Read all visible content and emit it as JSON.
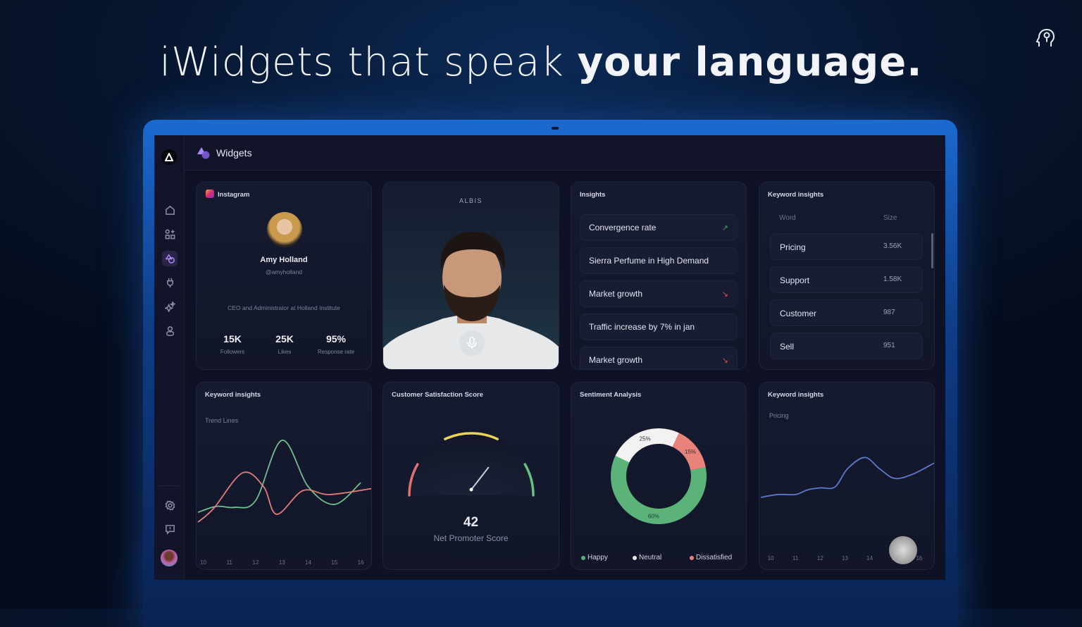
{
  "headline": {
    "regular": "iWidgets that speak ",
    "bold": "your language."
  },
  "brand_icon": "head-keyhole-icon",
  "app": {
    "title": "Widgets",
    "logo": "A"
  },
  "sidebar": {
    "items": [
      {
        "icon": "home-icon"
      },
      {
        "icon": "apps-icon"
      },
      {
        "icon": "widgets-icon",
        "active": true
      },
      {
        "icon": "plug-icon"
      },
      {
        "icon": "sparkles-icon"
      },
      {
        "icon": "user-icon"
      }
    ],
    "bottom": [
      {
        "icon": "gear-icon"
      },
      {
        "icon": "feedback-icon"
      },
      {
        "icon": "avatar"
      }
    ]
  },
  "instagram": {
    "label": "Instagram",
    "name": "Amy Holland",
    "handle": "@amyholland",
    "bio": "CEO and Administrator at Holland Institute",
    "stats": [
      {
        "value": "15K",
        "label": "Followers"
      },
      {
        "value": "25K",
        "label": "Likes"
      },
      {
        "value": "95%",
        "label": "Response rate"
      }
    ]
  },
  "avatar_card": {
    "label": "ALBIS",
    "icon": "microphone-icon"
  },
  "insights": {
    "title": "Insights",
    "items": [
      {
        "text": "Convergence rate",
        "trend": "up"
      },
      {
        "text": "Sierra Perfume in High Demand",
        "trend": ""
      },
      {
        "text": "Market growth",
        "trend": "down"
      },
      {
        "text": "Traffic increase by 7% in jan",
        "trend": ""
      },
      {
        "text": "Market growth",
        "trend": "down"
      }
    ],
    "colors": {
      "up": "#3f9a6a",
      "down": "#d9534f"
    }
  },
  "keyword_table": {
    "title": "Keyword insights",
    "headers": [
      "Word",
      "Size"
    ],
    "rows": [
      [
        "Pricing",
        "3.56K"
      ],
      [
        "Support",
        "1.58K"
      ],
      [
        "Customer",
        "987"
      ],
      [
        "Sell",
        "951"
      ]
    ]
  },
  "chart_data": [
    {
      "type": "line",
      "title": "Keyword insights",
      "subtitle": "Trend Lines",
      "x_ticks": [
        "10",
        "11",
        "12",
        "13",
        "14",
        "15",
        "16"
      ],
      "xlim": [
        9.8,
        16.4
      ],
      "ylim": [
        0,
        100
      ],
      "grid": false,
      "series": [
        {
          "color": "#6fbf8e",
          "points": [
            [
              9.8,
              22
            ],
            [
              10.5,
              28
            ],
            [
              11.2,
              27
            ],
            [
              12,
              34
            ],
            [
              13,
              95
            ],
            [
              14,
              48
            ],
            [
              15,
              30
            ],
            [
              16,
              52
            ]
          ]
        },
        {
          "color": "#e07c7c",
          "points": [
            [
              9.8,
              12
            ],
            [
              10.4,
              26
            ],
            [
              11.5,
              62
            ],
            [
              12.3,
              48
            ],
            [
              12.8,
              20
            ],
            [
              13.8,
              44
            ],
            [
              14.8,
              40
            ],
            [
              16.4,
              46
            ]
          ]
        }
      ]
    },
    {
      "type": "gauge",
      "title": "Customer Satisfaction Score",
      "value": 42,
      "label": "Net Promoter Score",
      "range": [
        -100,
        100
      ],
      "colors": [
        "#e27272",
        "#e8d45a",
        "#62c384"
      ]
    },
    {
      "type": "pie",
      "title": "Sentiment Analysis",
      "donut": true,
      "slices": [
        {
          "name": "Happy",
          "value": 60,
          "label": "60%",
          "color": "#5bb37a"
        },
        {
          "name": "Neutral",
          "value": 25,
          "label": "25%",
          "color": "#f2f2f2"
        },
        {
          "name": "Dissatisfied",
          "value": 15,
          "label": "15%",
          "color": "#e8837b"
        }
      ]
    },
    {
      "type": "line",
      "title": "Keyword insights",
      "subtitle": "Pricing",
      "x_ticks": [
        "10",
        "11",
        "12",
        "13",
        "14",
        "15",
        "16"
      ],
      "xlim": [
        9.6,
        16.6
      ],
      "ylim": [
        0,
        100
      ],
      "grid": false,
      "series": [
        {
          "color": "#5b78c9",
          "points": [
            [
              9.6,
              20
            ],
            [
              10.3,
              23
            ],
            [
              11,
              23
            ],
            [
              11.5,
              28
            ],
            [
              12,
              30
            ],
            [
              12.6,
              31
            ],
            [
              13.1,
              50
            ],
            [
              13.8,
              62
            ],
            [
              14.4,
              50
            ],
            [
              15,
              40
            ],
            [
              15.7,
              44
            ],
            [
              16.6,
              56
            ]
          ]
        }
      ]
    }
  ]
}
